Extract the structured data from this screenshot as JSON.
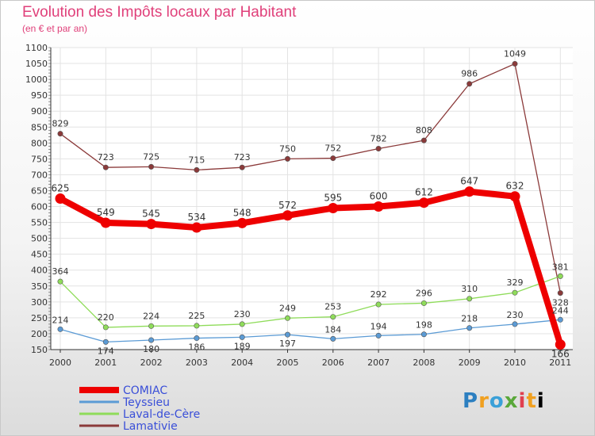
{
  "header": {
    "title": "Evolution des Impôts locaux par Habitant",
    "subtitle": "(en € et par an)"
  },
  "logo": {
    "text": "Proxiti"
  },
  "chart_data": {
    "type": "line",
    "x": [
      "2000",
      "2001",
      "2002",
      "2003",
      "2004",
      "2005",
      "2006",
      "2007",
      "2008",
      "2009",
      "2010",
      "2011"
    ],
    "ylim": [
      150,
      1100
    ],
    "yticks": [
      150,
      200,
      250,
      300,
      350,
      400,
      450,
      500,
      550,
      600,
      650,
      700,
      750,
      800,
      850,
      900,
      950,
      1000,
      1050,
      1100
    ],
    "grid": true,
    "legend": "bottom-left",
    "series": [
      {
        "name": "COMIAC",
        "color": "#ee0000",
        "values": [
          625,
          549,
          545,
          534,
          548,
          572,
          595,
          600,
          612,
          647,
          632,
          166
        ],
        "labels": [
          "625",
          "549",
          "545",
          "534",
          "548",
          "572",
          "595",
          "600",
          "612",
          "647",
          "632",
          "166"
        ]
      },
      {
        "name": "Teyssieu",
        "color": "#5b9bd5",
        "values": [
          214,
          174,
          180,
          186,
          189,
          197,
          184,
          194,
          198,
          218,
          230,
          244
        ],
        "labels": [
          "214",
          "174",
          "180",
          "186",
          "189",
          "197",
          "184",
          "194",
          "198",
          "218",
          "230",
          "244"
        ]
      },
      {
        "name": "Laval-de-Cère",
        "color": "#8fdc5a",
        "values": [
          364,
          220,
          224,
          225,
          230,
          249,
          253,
          292,
          296,
          310,
          329,
          381
        ],
        "labels": [
          "364",
          "220",
          "224",
          "225",
          "230",
          "249",
          "253",
          "292",
          "296",
          "310",
          "329",
          "381"
        ]
      },
      {
        "name": "Lamativie",
        "color": "#8b3a3a",
        "values": [
          829,
          723,
          725,
          715,
          723,
          750,
          752,
          782,
          808,
          986,
          1049,
          328
        ],
        "labels": [
          "829",
          "723",
          "725",
          "715",
          "723",
          "750",
          "752",
          "782",
          "808",
          "986",
          "1049",
          "328"
        ]
      }
    ]
  }
}
